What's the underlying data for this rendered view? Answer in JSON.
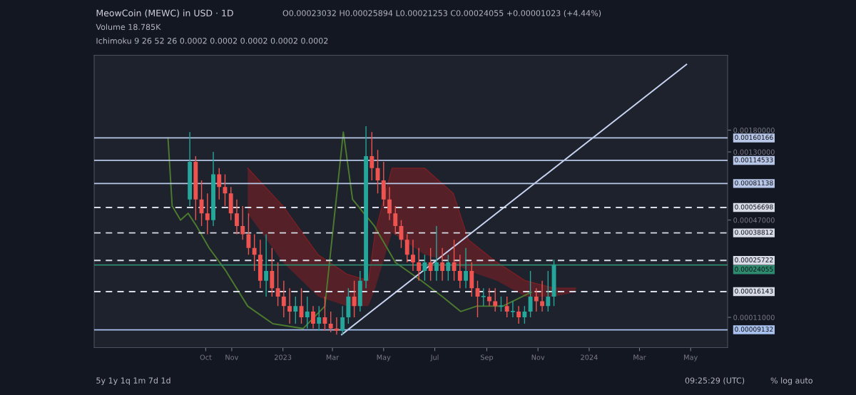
{
  "chart_data": {
    "type": "candlestick",
    "title": "MeowCoin (MEWC) in USD · 1D",
    "subtitle": "O0.00023032 H0.00025894 L0.00021253 C0.00024055 +0.00001023 (+4.44%)",
    "annotations": [
      "Volume 18.785K",
      "Ichimoku 9 26 52 26 0.0002 0.0002 0.0002 0.0002 0.0002",
      "5y 1y 1q 1m 7d 1d",
      "09:25:29 (UTC)",
      "% log auto"
    ],
    "log": true,
    "ylim": [
      7e-05,
      0.0055
    ],
    "yticks": [
      {
        "value": 0.0018,
        "label": "0.00180000"
      },
      {
        "value": 0.0013,
        "label": "0.00130000"
      },
      {
        "value": 0.00047,
        "label": "0.00047000"
      },
      {
        "value": 0.00011,
        "label": "0.00011000"
      }
    ],
    "xlim": [
      "2022-05-21",
      "2024-06-14"
    ],
    "xticks": [
      {
        "value": "2022-10-01",
        "label": "Oct"
      },
      {
        "value": "2022-11-01",
        "label": "Nov"
      },
      {
        "value": "2023-01-01",
        "label": "2023"
      },
      {
        "value": "2023-03-01",
        "label": "Mar"
      },
      {
        "value": "2023-05-01",
        "label": "May"
      },
      {
        "value": "2023-07-01",
        "label": "Jul"
      },
      {
        "value": "2023-09-01",
        "label": "Sep"
      },
      {
        "value": "2023-11-01",
        "label": "Nov"
      },
      {
        "value": "2024-01-01",
        "label": "2024"
      },
      {
        "value": "2024-03-01",
        "label": "Mar"
      },
      {
        "value": "2024-05-01",
        "label": "May"
      }
    ],
    "series": [
      {
        "type": "line",
        "color": "#7a1f24",
        "x": [
          "2022-11-20",
          "2023-01-01",
          "2023-02-12",
          "2023-03-18",
          "2023-04-13",
          "2023-04-21",
          "2023-05-11",
          "2023-06-19",
          "2023-07-23",
          "2023-08-10",
          "2023-09-13",
          "2023-10-17",
          "2023-11-20",
          "2023-12-16"
        ],
        "values": [
          0.00102,
          0.00058,
          0.00028,
          0.00021,
          0.00019,
          0.00039,
          0.00102,
          0.00102,
          0.0007,
          0.00035,
          0.00025,
          0.00019,
          0.00017,
          0.00017
        ],
        "upper": [
          0.00102,
          0.00058,
          0.00028,
          0.00021,
          0.00019,
          0.00039,
          0.00102,
          0.00102,
          0.0007,
          0.00035,
          0.00025,
          0.00019,
          0.00017,
          0.00017
        ],
        "lower": [
          0.00052,
          0.00025,
          0.00015,
          0.00013,
          0.00013,
          0.00017,
          0.00039,
          0.00028,
          0.00025,
          0.00022,
          0.00019,
          0.00015,
          0.00015,
          0.00016
        ]
      },
      {
        "type": "line",
        "color": "#4c7a2e",
        "x": [
          "2022-08-17",
          "2022-08-22",
          "2022-09-01",
          "2022-09-10",
          "2022-09-20",
          "2022-10-05",
          "2022-10-25",
          "2022-11-20",
          "2022-12-20",
          "2023-01-25",
          "2023-02-20",
          "2023-03-14",
          "2023-03-25",
          "2023-04-20",
          "2023-05-15",
          "2023-06-15",
          "2023-07-10",
          "2023-08-01",
          "2023-08-20",
          "2023-09-20",
          "2023-10-24"
        ],
        "values": [
          0.0016,
          0.00058,
          0.00047,
          0.00052,
          0.00043,
          0.00031,
          0.00022,
          0.00013,
          0.0001,
          9.3e-05,
          0.00013,
          0.00175,
          0.00064,
          0.00043,
          0.00025,
          0.00019,
          0.00015,
          0.00012,
          0.00013,
          0.00013,
          0.00016
        ]
      },
      {
        "x": [
          "2022-09-12",
          "2022-09-19",
          "2022-09-26",
          "2022-10-03",
          "2022-10-10",
          "2022-10-17",
          "2022-10-24",
          "2022-10-31",
          "2022-11-07",
          "2022-11-14",
          "2022-11-21",
          "2022-11-28",
          "2022-12-05",
          "2022-12-12",
          "2022-12-19",
          "2022-12-26",
          "2023-01-02",
          "2023-01-09",
          "2023-01-16",
          "2023-01-23",
          "2023-01-30",
          "2023-02-06",
          "2023-02-13",
          "2023-02-20",
          "2023-02-27",
          "2023-03-06",
          "2023-03-13",
          "2023-03-20",
          "2023-03-27",
          "2023-04-03",
          "2023-04-10",
          "2023-04-17",
          "2023-04-24",
          "2023-05-01",
          "2023-05-08",
          "2023-05-15",
          "2023-05-22",
          "2023-05-29",
          "2023-06-05",
          "2023-06-12",
          "2023-06-19",
          "2023-06-26",
          "2023-07-03",
          "2023-07-10",
          "2023-07-17",
          "2023-07-24",
          "2023-07-31",
          "2023-08-07",
          "2023-08-14",
          "2023-08-21",
          "2023-08-28",
          "2023-09-04",
          "2023-09-11",
          "2023-09-18",
          "2023-09-25",
          "2023-10-02",
          "2023-10-09",
          "2023-10-16",
          "2023-10-23",
          "2023-10-30",
          "2023-11-06",
          "2023-11-13",
          "2023-11-20"
        ],
        "ohlc": [
          [
            0.00064,
            0.00175,
            0.00058,
            0.00112
          ],
          [
            0.00112,
            0.00122,
            0.00047,
            0.00064
          ],
          [
            0.00064,
            0.00085,
            0.00043,
            0.00052
          ],
          [
            0.00052,
            0.0007,
            0.00038,
            0.00047
          ],
          [
            0.00047,
            0.0013,
            0.00043,
            0.00093
          ],
          [
            0.00093,
            0.00102,
            0.00064,
            0.00077
          ],
          [
            0.00077,
            0.00093,
            0.00058,
            0.0007
          ],
          [
            0.0007,
            0.00077,
            0.00047,
            0.00052
          ],
          [
            0.00052,
            0.00064,
            0.00038,
            0.00043
          ],
          [
            0.00043,
            0.00058,
            0.00035,
            0.00038
          ],
          [
            0.00038,
            0.00052,
            0.00028,
            0.00031
          ],
          [
            0.00031,
            0.00038,
            0.00022,
            0.00028
          ],
          [
            0.00028,
            0.00035,
            0.00017,
            0.00019
          ],
          [
            0.00019,
            0.00038,
            0.00015,
            0.00022
          ],
          [
            0.00022,
            0.00031,
            0.00015,
            0.00017
          ],
          [
            0.00017,
            0.00025,
            0.00013,
            0.00015
          ],
          [
            0.00015,
            0.00019,
            0.00011,
            0.00013
          ],
          [
            0.00013,
            0.00017,
            0.0001,
            0.00012
          ],
          [
            0.00012,
            0.00015,
            0.0001,
            0.00013
          ],
          [
            0.00013,
            0.00017,
            0.0001,
            0.00011
          ],
          [
            0.00011,
            0.00015,
            9.3e-05,
            0.00012
          ],
          [
            0.00012,
            0.00013,
            9.3e-05,
            0.0001
          ],
          [
            0.0001,
            0.00013,
            9e-05,
            0.00011
          ],
          [
            0.00011,
            0.00015,
            9e-05,
            0.0001
          ],
          [
            0.0001,
            0.00012,
            8.8e-05,
            9.3e-05
          ],
          [
            9.3e-05,
            0.00011,
            8.5e-05,
            9e-05
          ],
          [
            9e-05,
            0.00013,
            8.5e-05,
            0.00011
          ],
          [
            0.00011,
            0.00017,
            0.0001,
            0.00015
          ],
          [
            0.00015,
            0.00019,
            0.00011,
            0.00013
          ],
          [
            0.00013,
            0.00022,
            0.00012,
            0.00019
          ],
          [
            0.00019,
            0.00191,
            0.00017,
            0.00122
          ],
          [
            0.00122,
            0.00175,
            0.00085,
            0.00102
          ],
          [
            0.00102,
            0.00134,
            0.0007,
            0.00085
          ],
          [
            0.00085,
            0.00112,
            0.00058,
            0.00064
          ],
          [
            0.00064,
            0.00077,
            0.00047,
            0.00052
          ],
          [
            0.00052,
            0.00058,
            0.00038,
            0.00043
          ],
          [
            0.00043,
            0.00047,
            0.00031,
            0.00035
          ],
          [
            0.00035,
            0.00038,
            0.00025,
            0.00028
          ],
          [
            0.00028,
            0.00035,
            0.00022,
            0.00025
          ],
          [
            0.00025,
            0.00031,
            0.00019,
            0.00022
          ],
          [
            0.00022,
            0.00028,
            0.00019,
            0.00025
          ],
          [
            0.00025,
            0.00031,
            0.00019,
            0.00022
          ],
          [
            0.00022,
            0.00043,
            0.00019,
            0.00025
          ],
          [
            0.00025,
            0.00031,
            0.00019,
            0.00022
          ],
          [
            0.00022,
            0.00028,
            0.00019,
            0.00025
          ],
          [
            0.00025,
            0.00035,
            0.00019,
            0.00022
          ],
          [
            0.00022,
            0.00028,
            0.00017,
            0.00019
          ],
          [
            0.00019,
            0.00031,
            0.00017,
            0.00022
          ],
          [
            0.00022,
            0.00025,
            0.00015,
            0.00017
          ],
          [
            0.00017,
            0.00019,
            0.00011,
            0.00015
          ],
          [
            0.00015,
            0.00017,
            0.00013,
            0.00015
          ],
          [
            0.00015,
            0.00017,
            0.00013,
            0.00014
          ],
          [
            0.00014,
            0.00017,
            0.00012,
            0.00013
          ],
          [
            0.00013,
            0.00015,
            0.00012,
            0.00013
          ],
          [
            0.00013,
            0.00015,
            0.00011,
            0.00012
          ],
          [
            0.00012,
            0.00014,
            0.00011,
            0.00012
          ],
          [
            0.00012,
            0.00013,
            0.0001,
            0.00011
          ],
          [
            0.00011,
            0.00013,
            0.0001,
            0.00012
          ],
          [
            0.00012,
            0.00022,
            0.00011,
            0.00015
          ],
          [
            0.00015,
            0.00017,
            0.00012,
            0.00014
          ],
          [
            0.00014,
            0.00019,
            0.00012,
            0.00013
          ],
          [
            0.00013,
            0.00022,
            0.00012,
            0.00015
          ],
          [
            0.00015,
            0.00026,
            0.00013,
            0.00024055
          ]
        ],
        "colors": [
          "#26a69a",
          "#ef5350",
          "#ef5350",
          "#ef5350",
          "#26a69a",
          "#ef5350",
          "#ef5350",
          "#ef5350",
          "#ef5350",
          "#ef5350",
          "#ef5350",
          "#ef5350",
          "#ef5350",
          "#26a69a",
          "#ef5350",
          "#ef5350",
          "#ef5350",
          "#ef5350",
          "#26a69a",
          "#ef5350",
          "#26a69a",
          "#ef5350",
          "#26a69a",
          "#ef5350",
          "#ef5350",
          "#ef5350",
          "#26a69a",
          "#26a69a",
          "#ef5350",
          "#26a69a",
          "#26a69a",
          "#ef5350",
          "#ef5350",
          "#ef5350",
          "#ef5350",
          "#ef5350",
          "#ef5350",
          "#ef5350",
          "#ef5350",
          "#ef5350",
          "#26a69a",
          "#ef5350",
          "#26a69a",
          "#ef5350",
          "#26a69a",
          "#ef5350",
          "#ef5350",
          "#26a69a",
          "#ef5350",
          "#ef5350",
          "#26a69a",
          "#ef5350",
          "#ef5350",
          "#26a69a",
          "#ef5350",
          "#26a69a",
          "#ef5350",
          "#26a69a",
          "#26a69a",
          "#ef5350",
          "#ef5350",
          "#26a69a",
          "#26a69a"
        ]
      },
      {
        "type": "line",
        "color": "#c8d4f0",
        "x": [
          "2023-03-12",
          "2024-04-26"
        ],
        "values": [
          8.5e-05,
          0.0048
        ]
      }
    ],
    "ref_lines": [
      {
        "axis": "y",
        "value": 0.00160166,
        "label": "0.00160166",
        "color": "#b8c7e8",
        "line_style": "solid"
      },
      {
        "axis": "y",
        "value": 0.00114533,
        "label": "0.00114533",
        "color": "#b8c7e8",
        "line_style": "solid"
      },
      {
        "axis": "y",
        "value": 0.00081138,
        "label": "0.00081138",
        "color": "#b8c7e8",
        "line_style": "solid"
      },
      {
        "axis": "y",
        "value": 0.00056698,
        "label": "0.00056698",
        "color": "#d8dce6",
        "line_style": "dashed"
      },
      {
        "axis": "y",
        "value": 0.00038812,
        "label": "0.00038812",
        "color": "#d8dce6",
        "line_style": "dashed"
      },
      {
        "axis": "y",
        "value": 0.00025722,
        "label": "0.00025722",
        "color": "#d8dce6",
        "line_style": "dashed"
      },
      {
        "axis": "y",
        "value": 0.00024055,
        "label": "0.00024055",
        "color": "#2e8b6e",
        "line_style": "solid"
      },
      {
        "axis": "y",
        "value": 0.00016143,
        "label": "0.00016143",
        "color": "#d8dce6",
        "line_style": "dashed"
      },
      {
        "axis": "y",
        "value": 9.132e-05,
        "label": "0.00009132",
        "color": "#a9c1ee",
        "line_style": "solid"
      }
    ]
  }
}
